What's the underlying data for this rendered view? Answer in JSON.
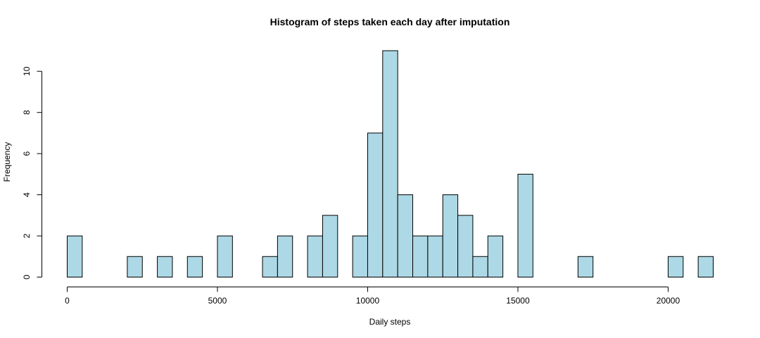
{
  "chart_data": {
    "type": "bar",
    "title": "Histogram of steps taken each day after imputation",
    "xlabel": "Daily steps",
    "ylabel": "Frequency",
    "bin_width": 500,
    "bins_start": [
      0,
      2000,
      3000,
      4000,
      5000,
      6500,
      7000,
      8000,
      8500,
      9500,
      10000,
      10500,
      11000,
      11500,
      12000,
      12500,
      13000,
      13500,
      14000,
      15000,
      17000,
      20000,
      21000
    ],
    "values": [
      2,
      1,
      1,
      1,
      2,
      1,
      2,
      2,
      3,
      2,
      7,
      11,
      4,
      2,
      2,
      4,
      3,
      1,
      2,
      5,
      1,
      1,
      1
    ],
    "xlim": [
      0,
      21500
    ],
    "ylim": [
      0,
      11
    ],
    "x_ticks": [
      "0",
      "5000",
      "10000",
      "15000",
      "20000"
    ],
    "y_ticks": [
      "0",
      "2",
      "4",
      "6",
      "8",
      "10"
    ],
    "bar_color": "#add8e6",
    "grid": false
  }
}
